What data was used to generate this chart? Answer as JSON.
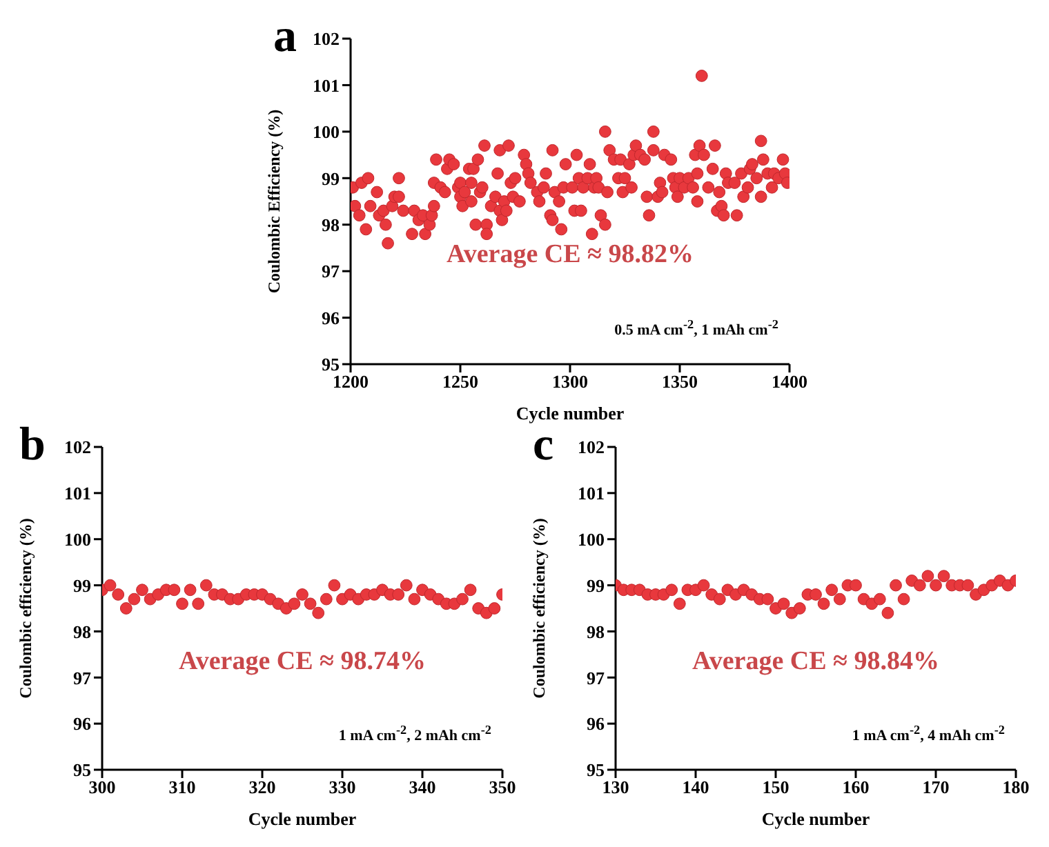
{
  "chart_data": [
    {
      "type": "scatter",
      "xlabel": "Cycle number",
      "ylabel": "Coulombic Efficiency (%)",
      "color": "#e8383d",
      "marker": "circle",
      "xlim": [
        1200,
        1400
      ],
      "xticks": [
        1200,
        1250,
        1300,
        1350,
        1400
      ],
      "ylim": [
        95,
        102
      ],
      "yticks": [
        95,
        96,
        97,
        98,
        99,
        100,
        101,
        102
      ],
      "annotations": [
        "a",
        "Average CE ≈ 98.82%",
        "0.5 mA cm$^{-2}$, 1 mAh cm$^{-2}$"
      ],
      "x": [
        1201,
        1202,
        1204,
        1205,
        1207,
        1208,
        1209,
        1212,
        1213,
        1215,
        1216,
        1217,
        1219,
        1220,
        1222,
        1222,
        1224,
        1228,
        1229,
        1231,
        1233,
        1234,
        1236,
        1237,
        1238,
        1238,
        1239,
        1241,
        1243,
        1244,
        1245,
        1247,
        1249,
        1250,
        1250,
        1251,
        1252,
        1254,
        1255,
        1255,
        1256,
        1257,
        1258,
        1259,
        1260,
        1261,
        1262,
        1262,
        1264,
        1266,
        1267,
        1268,
        1268,
        1269,
        1270,
        1271,
        1272,
        1273,
        1274,
        1275,
        1277,
        1279,
        1280,
        1281,
        1282,
        1285,
        1286,
        1288,
        1289,
        1291,
        1292,
        1292,
        1293,
        1295,
        1296,
        1297,
        1298,
        1301,
        1302,
        1303,
        1304,
        1305,
        1306,
        1308,
        1309,
        1310,
        1311,
        1312,
        1313,
        1314,
        1316,
        1316,
        1317,
        1318,
        1320,
        1322,
        1323,
        1324,
        1325,
        1327,
        1328,
        1329,
        1330,
        1332,
        1334,
        1335,
        1336,
        1338,
        1338,
        1340,
        1341,
        1342,
        1343,
        1346,
        1347,
        1348,
        1349,
        1350,
        1352,
        1354,
        1356,
        1357,
        1358,
        1358,
        1359,
        1360,
        1361,
        1363,
        1365,
        1366,
        1367,
        1368,
        1369,
        1370,
        1371,
        1372,
        1375,
        1376,
        1378,
        1379,
        1381,
        1382,
        1383,
        1385,
        1387,
        1387,
        1388,
        1390,
        1392,
        1393,
        1395,
        1397,
        1398,
        1399
      ],
      "values": [
        98.8,
        98.4,
        98.2,
        98.9,
        97.9,
        99.0,
        98.4,
        98.7,
        98.2,
        98.3,
        98.0,
        97.6,
        98.4,
        98.6,
        99.0,
        98.6,
        98.3,
        97.8,
        98.3,
        98.1,
        98.2,
        97.8,
        98.0,
        98.2,
        98.4,
        98.9,
        99.4,
        98.8,
        98.7,
        99.2,
        99.4,
        99.3,
        98.8,
        98.6,
        98.9,
        98.4,
        98.7,
        99.2,
        98.9,
        98.5,
        99.2,
        98.0,
        99.4,
        98.7,
        98.8,
        99.7,
        98.0,
        97.8,
        98.4,
        98.6,
        99.1,
        98.3,
        99.6,
        98.1,
        98.5,
        98.3,
        99.7,
        98.9,
        98.6,
        99.0,
        98.5,
        99.5,
        99.3,
        99.1,
        98.9,
        98.7,
        98.5,
        98.8,
        99.1,
        98.2,
        98.1,
        99.6,
        98.7,
        98.5,
        97.9,
        98.8,
        99.3,
        98.8,
        98.3,
        99.5,
        99.0,
        98.3,
        98.8,
        99.0,
        99.3,
        97.8,
        98.8,
        99.0,
        98.8,
        98.2,
        100.0,
        98.0,
        98.7,
        99.6,
        99.4,
        99.0,
        99.4,
        98.7,
        99.0,
        99.3,
        98.8,
        99.5,
        99.7,
        99.5,
        99.4,
        98.6,
        98.2,
        100.0,
        99.6,
        98.6,
        98.9,
        98.7,
        99.5,
        99.4,
        99.0,
        98.8,
        98.6,
        99.0,
        98.8,
        99.0,
        98.8,
        99.5,
        99.1,
        98.5,
        99.7,
        101.2,
        99.5,
        98.8,
        99.2,
        99.7,
        98.3,
        98.7,
        98.4,
        98.2,
        99.1,
        98.9,
        98.9,
        98.2,
        99.1,
        98.6,
        98.8,
        99.2,
        99.3,
        99.0,
        99.8,
        98.6,
        99.4,
        99.1,
        98.8,
        99.1,
        99.0,
        99.4,
        99.1,
        98.9
      ]
    },
    {
      "type": "scatter",
      "xlabel": "Cycle number",
      "ylabel": "Coulombic efficiency (%)",
      "color": "#e8383d",
      "marker": "circle",
      "xlim": [
        300,
        350
      ],
      "xticks": [
        300,
        310,
        320,
        330,
        340,
        350
      ],
      "ylim": [
        95,
        102
      ],
      "yticks": [
        95,
        96,
        97,
        98,
        99,
        100,
        101,
        102
      ],
      "annotations": [
        "b",
        "Average CE ≈ 98.74%",
        "1 mA cm$^{-2}$, 2 mAh cm$^{-2}$"
      ],
      "x": [
        300,
        301,
        302,
        303,
        304,
        305,
        306,
        307,
        308,
        309,
        310,
        311,
        312,
        313,
        314,
        315,
        316,
        317,
        318,
        319,
        320,
        321,
        322,
        323,
        324,
        325,
        326,
        327,
        328,
        329,
        330,
        331,
        332,
        333,
        334,
        335,
        336,
        337,
        338,
        339,
        340,
        341,
        342,
        343,
        344,
        345,
        346,
        347,
        348,
        349,
        350
      ],
      "values": [
        98.9,
        99.0,
        98.8,
        98.5,
        98.7,
        98.9,
        98.7,
        98.8,
        98.9,
        98.9,
        98.6,
        98.9,
        98.6,
        99.0,
        98.8,
        98.8,
        98.7,
        98.7,
        98.8,
        98.8,
        98.8,
        98.7,
        98.6,
        98.5,
        98.6,
        98.8,
        98.6,
        98.4,
        98.7,
        99.0,
        98.7,
        98.8,
        98.7,
        98.8,
        98.8,
        98.9,
        98.8,
        98.8,
        99.0,
        98.7,
        98.9,
        98.8,
        98.7,
        98.6,
        98.6,
        98.7,
        98.9,
        98.5,
        98.4,
        98.5,
        98.8
      ]
    },
    {
      "type": "scatter",
      "xlabel": "Cycle number",
      "ylabel": "Coulombic efficiency (%)",
      "color": "#e8383d",
      "marker": "circle",
      "xlim": [
        130,
        180
      ],
      "xticks": [
        130,
        140,
        150,
        160,
        170,
        180
      ],
      "ylim": [
        95,
        102
      ],
      "yticks": [
        95,
        96,
        97,
        98,
        99,
        100,
        101,
        102
      ],
      "annotations": [
        "c",
        "Average CE ≈ 98.84%",
        "1 mA cm$^{-2}$, 4 mAh cm$^{-2}$"
      ],
      "x": [
        130,
        131,
        132,
        133,
        134,
        135,
        136,
        137,
        138,
        139,
        140,
        141,
        142,
        143,
        144,
        145,
        146,
        147,
        148,
        149,
        150,
        151,
        152,
        153,
        154,
        155,
        156,
        157,
        158,
        159,
        160,
        161,
        162,
        163,
        164,
        165,
        166,
        167,
        168,
        169,
        170,
        171,
        172,
        173,
        174,
        175,
        176,
        177,
        178,
        179,
        180
      ],
      "values": [
        99.0,
        98.9,
        98.9,
        98.9,
        98.8,
        98.8,
        98.8,
        98.9,
        98.6,
        98.9,
        98.9,
        99.0,
        98.8,
        98.7,
        98.9,
        98.8,
        98.9,
        98.8,
        98.7,
        98.7,
        98.5,
        98.6,
        98.4,
        98.5,
        98.8,
        98.8,
        98.6,
        98.9,
        98.7,
        99.0,
        99.0,
        98.7,
        98.6,
        98.7,
        98.4,
        99.0,
        98.7,
        99.1,
        99.0,
        99.2,
        99.0,
        99.2,
        99.0,
        99.0,
        99.0,
        98.8,
        98.9,
        99.0,
        99.1,
        99.0,
        99.1
      ]
    }
  ]
}
